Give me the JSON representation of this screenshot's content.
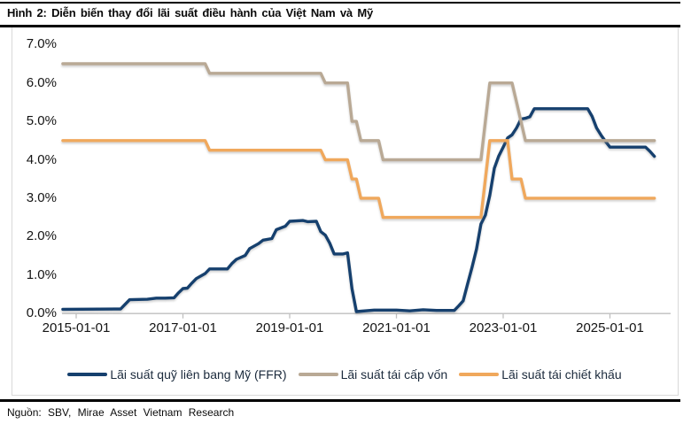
{
  "header": {
    "title": "Hình 2: Diễn biến thay đổi lãi suất điều hành của Việt Nam và Mỹ"
  },
  "footer": {
    "source": "Nguồn: SBV, Mirae Asset Vietnam Research"
  },
  "colors": {
    "ffr_navy": "#16406e",
    "refinance_tan": "#b9a995",
    "discount_orange": "#f0a85c",
    "axis_gray": "#bfbfbf",
    "border_gray": "#d9d9d9",
    "text_black": "#141414"
  },
  "chart_data": {
    "type": "line",
    "title": "Hình 2: Diễn biến thay đổi lãi suất điều hành của Việt Nam và Mỹ",
    "grid": "off",
    "legend_position": "bottom-center",
    "y_axis": {
      "unit": "%",
      "min": 0,
      "max": 7,
      "tick_labels": [
        "7.0%",
        "6.0%",
        "5.0%",
        "4.0%",
        "3.0%",
        "2.0%",
        "1.0%",
        "0.0%"
      ]
    },
    "x_axis": {
      "tick_labels": [
        "2015-01-01",
        "2017-01-01",
        "2019-01-01",
        "2021-01-01",
        "2023-01-01",
        "2025-01-01"
      ],
      "range": [
        "2014-10",
        "2025-12"
      ]
    },
    "series": [
      {
        "name": "Lãi suất quỹ liên bang Mỹ (FFR)",
        "color": "#16406e",
        "points": [
          [
            "2014-10",
            0.11
          ],
          [
            "2015-11",
            0.12
          ],
          [
            "2015-12",
            0.24
          ],
          [
            "2016-01",
            0.36
          ],
          [
            "2016-05",
            0.37
          ],
          [
            "2016-07",
            0.4
          ],
          [
            "2016-09",
            0.4
          ],
          [
            "2016-11",
            0.41
          ],
          [
            "2016-12",
            0.54
          ],
          [
            "2017-01",
            0.65
          ],
          [
            "2017-02",
            0.66
          ],
          [
            "2017-03",
            0.79
          ],
          [
            "2017-04",
            0.91
          ],
          [
            "2017-06",
            1.04
          ],
          [
            "2017-07",
            1.16
          ],
          [
            "2017-11",
            1.16
          ],
          [
            "2017-12",
            1.3
          ],
          [
            "2018-01",
            1.41
          ],
          [
            "2018-03",
            1.51
          ],
          [
            "2018-04",
            1.69
          ],
          [
            "2018-06",
            1.82
          ],
          [
            "2018-07",
            1.91
          ],
          [
            "2018-09",
            1.95
          ],
          [
            "2018-10",
            2.18
          ],
          [
            "2018-12",
            2.27
          ],
          [
            "2019-01",
            2.4
          ],
          [
            "2019-04",
            2.42
          ],
          [
            "2019-05",
            2.39
          ],
          [
            "2019-07",
            2.4
          ],
          [
            "2019-08",
            2.13
          ],
          [
            "2019-09",
            2.04
          ],
          [
            "2019-10",
            1.83
          ],
          [
            "2019-11",
            1.55
          ],
          [
            "2020-01",
            1.55
          ],
          [
            "2020-02",
            1.58
          ],
          [
            "2020-03",
            0.65
          ],
          [
            "2020-04",
            0.05
          ],
          [
            "2020-08",
            0.09
          ],
          [
            "2021-01",
            0.09
          ],
          [
            "2021-04",
            0.07
          ],
          [
            "2021-07",
            0.1
          ],
          [
            "2021-10",
            0.08
          ],
          [
            "2022-02",
            0.08
          ],
          [
            "2022-03",
            0.2
          ],
          [
            "2022-04",
            0.33
          ],
          [
            "2022-05",
            0.77
          ],
          [
            "2022-06",
            1.21
          ],
          [
            "2022-07",
            1.68
          ],
          [
            "2022-08",
            2.33
          ],
          [
            "2022-09",
            2.56
          ],
          [
            "2022-10",
            3.08
          ],
          [
            "2022-11",
            3.78
          ],
          [
            "2022-12",
            4.1
          ],
          [
            "2023-01",
            4.33
          ],
          [
            "2023-02",
            4.57
          ],
          [
            "2023-03",
            4.65
          ],
          [
            "2023-04",
            4.83
          ],
          [
            "2023-05",
            5.06
          ],
          [
            "2023-06",
            5.08
          ],
          [
            "2023-07",
            5.12
          ],
          [
            "2023-08",
            5.33
          ],
          [
            "2024-08",
            5.33
          ],
          [
            "2024-09",
            5.13
          ],
          [
            "2024-10",
            4.83
          ],
          [
            "2024-11",
            4.64
          ],
          [
            "2024-12",
            4.48
          ],
          [
            "2025-01",
            4.33
          ],
          [
            "2025-09",
            4.33
          ],
          [
            "2025-10",
            4.22
          ],
          [
            "2025-11",
            4.09
          ]
        ]
      },
      {
        "name": "Lãi suất tái cấp vốn",
        "color": "#b9a995",
        "points": [
          [
            "2014-10",
            6.5
          ],
          [
            "2017-06",
            6.5
          ],
          [
            "2017-07",
            6.25
          ],
          [
            "2019-08",
            6.25
          ],
          [
            "2019-09",
            6.0
          ],
          [
            "2020-02",
            6.0
          ],
          [
            "2020-03",
            5.0
          ],
          [
            "2020-04",
            5.0
          ],
          [
            "2020-05",
            4.5
          ],
          [
            "2020-09",
            4.5
          ],
          [
            "2020-10",
            4.0
          ],
          [
            "2022-08",
            4.0
          ],
          [
            "2022-09",
            5.0
          ],
          [
            "2022-10",
            6.0
          ],
          [
            "2023-03",
            6.0
          ],
          [
            "2023-04",
            5.5
          ],
          [
            "2023-05",
            5.0
          ],
          [
            "2023-06",
            4.5
          ],
          [
            "2025-11",
            4.5
          ]
        ]
      },
      {
        "name": "Lãi suất tái chiết khấu",
        "color": "#f0a85c",
        "points": [
          [
            "2014-10",
            4.5
          ],
          [
            "2017-06",
            4.5
          ],
          [
            "2017-07",
            4.25
          ],
          [
            "2019-08",
            4.25
          ],
          [
            "2019-09",
            4.0
          ],
          [
            "2020-02",
            4.0
          ],
          [
            "2020-03",
            3.5
          ],
          [
            "2020-04",
            3.5
          ],
          [
            "2020-05",
            3.0
          ],
          [
            "2020-09",
            3.0
          ],
          [
            "2020-10",
            2.5
          ],
          [
            "2022-08",
            2.5
          ],
          [
            "2022-09",
            3.5
          ],
          [
            "2022-10",
            4.5
          ],
          [
            "2023-02",
            4.5
          ],
          [
            "2023-03",
            3.5
          ],
          [
            "2023-05",
            3.5
          ],
          [
            "2023-06",
            3.0
          ],
          [
            "2025-11",
            3.0
          ]
        ]
      }
    ]
  }
}
